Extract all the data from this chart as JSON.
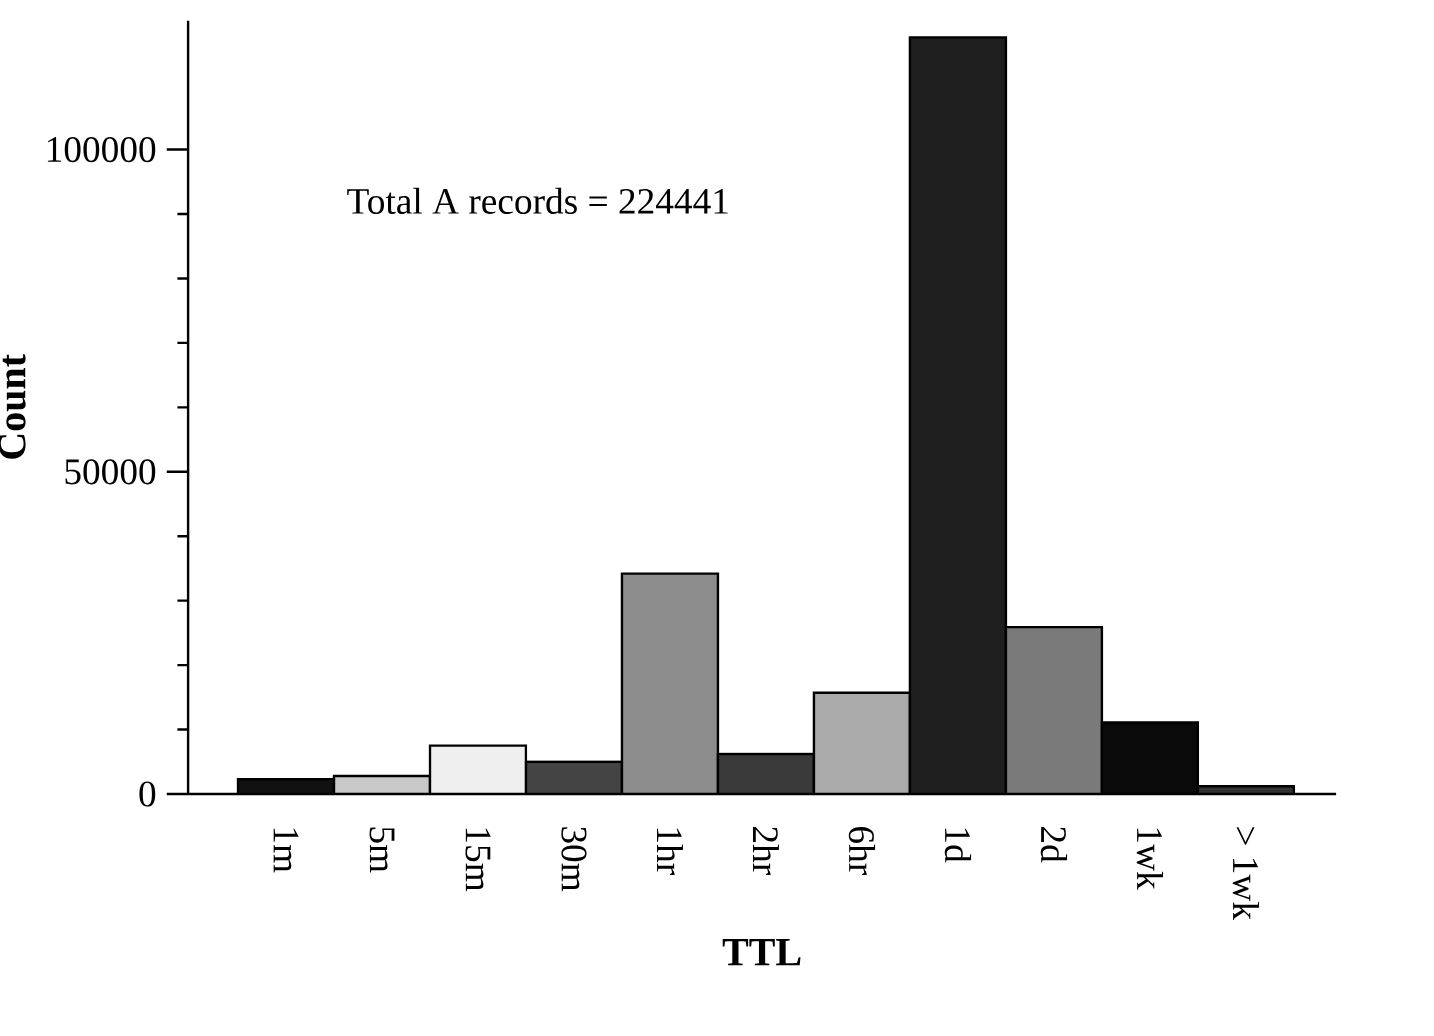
{
  "chart_data": {
    "type": "bar",
    "xlabel": "TTL",
    "ylabel": "Count",
    "categories": [
      "1m",
      "5m",
      "15m",
      "30m",
      "1hr",
      "2hr",
      "6hr",
      "1d",
      "2d",
      "1wk",
      "> 1wk"
    ],
    "values": [
      2300,
      2800,
      7500,
      5000,
      34200,
      6200,
      15700,
      117400,
      25900,
      11100,
      1200
    ],
    "colors": [
      "#111111",
      "#c8c8c8",
      "#efefef",
      "#444444",
      "#8c8c8c",
      "#3a3a3a",
      "#aaaaaa",
      "#1e1e1e",
      "#7a7a7a",
      "#0a0a0a",
      "#333333"
    ],
    "ylim": [
      0,
      120000
    ],
    "yticks": [
      0,
      50000,
      100000
    ],
    "annotations": [
      "Total A records = 224441"
    ],
    "grid": false
  }
}
